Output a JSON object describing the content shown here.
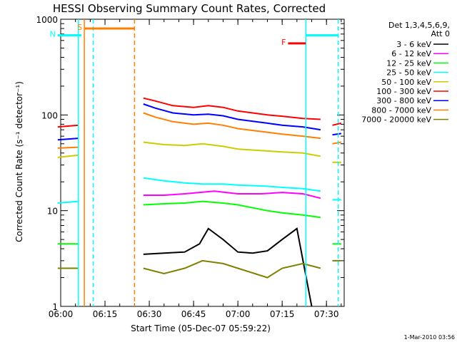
{
  "chart_data": {
    "type": "line",
    "title": "HESSI Observing Summary Count Rates, Corrected",
    "xlabel": "Start Time (05-Dec-07 05:59:22)",
    "ylabel": "Corrected Count Rate (s⁻¹ detector⁻¹)",
    "y_scale": "log",
    "xlim": [
      "06:00",
      "07:36"
    ],
    "ylim": [
      1,
      1000
    ],
    "x_ticks": [
      "06:00",
      "06:15",
      "06:30",
      "06:45",
      "07:00",
      "07:15",
      "07:30"
    ],
    "y_ticks": [
      "1",
      "10",
      "100",
      "1000"
    ],
    "legend_title": [
      "Det 1,3,4,5,6,9,",
      "Att 0"
    ],
    "legend_position": "right",
    "footer": "1-Mar-2010 03:56",
    "series": [
      {
        "name": "3 - 6 keV",
        "color": "#000000",
        "segments": [
          {
            "x": [
              "06:28",
              "06:35",
              "06:42",
              "06:47",
              "06:50",
              "06:55",
              "07:00",
              "07:05",
              "07:10",
              "07:15",
              "07:20",
              "07:25"
            ],
            "y": [
              3.5,
              3.6,
              3.7,
              4.5,
              6.5,
              5.0,
              3.7,
              3.6,
              3.8,
              5.0,
              6.5,
              1.0
            ]
          }
        ]
      },
      {
        "name": "6 - 12 keV",
        "color": "#ff00ff",
        "segments": [
          {
            "x": [
              "06:28",
              "06:35",
              "06:42",
              "06:47",
              "06:52",
              "07:00",
              "07:08",
              "07:15",
              "07:22",
              "07:28"
            ],
            "y": [
              14.5,
              14.5,
              15.0,
              15.5,
              16.0,
              15.0,
              15.0,
              15.5,
              15.0,
              13.5
            ]
          }
        ]
      },
      {
        "name": "12 - 25 keV",
        "color": "#00ff00",
        "segments": [
          {
            "x": [
              "05:59",
              "06:06"
            ],
            "y": [
              4.5,
              4.5
            ]
          },
          {
            "x": [
              "06:28",
              "06:35",
              "06:42",
              "06:48",
              "06:55",
              "07:00",
              "07:10",
              "07:15",
              "07:22",
              "07:28"
            ],
            "y": [
              11.5,
              11.8,
              12.0,
              12.5,
              12.0,
              11.5,
              10.0,
              9.5,
              9.0,
              8.5
            ]
          },
          {
            "x": [
              "07:32",
              "07:35"
            ],
            "y": [
              4.5,
              4.5
            ]
          }
        ]
      },
      {
        "name": "25 - 50 keV",
        "color": "#00ffff",
        "segments": [
          {
            "x": [
              "05:59",
              "06:06"
            ],
            "y": [
              12.0,
              12.5
            ]
          },
          {
            "x": [
              "06:28",
              "06:35",
              "06:42",
              "06:48",
              "06:55",
              "07:00",
              "07:10",
              "07:15",
              "07:22",
              "07:28"
            ],
            "y": [
              22.0,
              20.5,
              19.5,
              19.0,
              19.0,
              18.5,
              18.0,
              17.5,
              17.0,
              16.0
            ]
          },
          {
            "x": [
              "07:32",
              "07:35"
            ],
            "y": [
              13.0,
              13.0
            ]
          }
        ]
      },
      {
        "name": "50 - 100 keV",
        "color": "#cccc00",
        "segments": [
          {
            "x": [
              "05:59",
              "06:06"
            ],
            "y": [
              36,
              38
            ]
          },
          {
            "x": [
              "06:28",
              "06:35",
              "06:42",
              "06:48",
              "06:55",
              "07:00",
              "07:10",
              "07:15",
              "07:22",
              "07:28"
            ],
            "y": [
              52,
              49,
              48,
              50,
              47,
              44,
              42,
              41,
              40,
              37
            ]
          },
          {
            "x": [
              "07:32",
              "07:35"
            ],
            "y": [
              32,
              32
            ]
          }
        ]
      },
      {
        "name": "100 - 300 keV",
        "color": "#ff0000",
        "segments": [
          {
            "x": [
              "05:59",
              "06:06"
            ],
            "y": [
              75,
              78
            ]
          },
          {
            "x": [
              "06:28",
              "06:32",
              "06:38",
              "06:45",
              "06:50",
              "06:55",
              "07:00",
              "07:10",
              "07:15",
              "07:22",
              "07:28"
            ],
            "y": [
              150,
              140,
              125,
              120,
              125,
              120,
              110,
              100,
              97,
              92,
              90
            ]
          },
          {
            "x": [
              "07:32",
              "07:35"
            ],
            "y": [
              78,
              82
            ]
          }
        ]
      },
      {
        "name": "300 - 800 keV",
        "color": "#0000ff",
        "segments": [
          {
            "x": [
              "05:59",
              "06:06"
            ],
            "y": [
              55,
              57
            ]
          },
          {
            "x": [
              "06:28",
              "06:32",
              "06:38",
              "06:45",
              "06:50",
              "06:55",
              "07:00",
              "07:10",
              "07:15",
              "07:22",
              "07:28"
            ],
            "y": [
              130,
              118,
              105,
              100,
              102,
              98,
              90,
              82,
              78,
              75,
              70
            ]
          },
          {
            "x": [
              "07:32",
              "07:35"
            ],
            "y": [
              62,
              64
            ]
          }
        ]
      },
      {
        "name": "800 - 7000 keV",
        "color": "#ff8000",
        "segments": [
          {
            "x": [
              "05:59",
              "06:06"
            ],
            "y": [
              45,
              46
            ]
          },
          {
            "x": [
              "06:28",
              "06:32",
              "06:38",
              "06:45",
              "06:50",
              "06:55",
              "07:00",
              "07:10",
              "07:15",
              "07:22",
              "07:28"
            ],
            "y": [
              105,
              95,
              85,
              80,
              82,
              78,
              72,
              66,
              63,
              60,
              57
            ]
          },
          {
            "x": [
              "07:32",
              "07:35"
            ],
            "y": [
              50,
              52
            ]
          }
        ]
      },
      {
        "name": "7000 - 20000 keV",
        "color": "#808000",
        "segments": [
          {
            "x": [
              "05:59",
              "06:06"
            ],
            "y": [
              2.5,
              2.5
            ]
          },
          {
            "x": [
              "06:28",
              "06:35",
              "06:42",
              "06:48",
              "06:55",
              "07:00",
              "07:10",
              "07:15",
              "07:22",
              "07:28"
            ],
            "y": [
              2.5,
              2.2,
              2.5,
              3.0,
              2.8,
              2.5,
              2.0,
              2.5,
              2.8,
              2.5
            ]
          },
          {
            "x": [
              "07:32",
              "07:35"
            ],
            "y": [
              3.0,
              3.0
            ]
          }
        ]
      }
    ],
    "annotations": [
      {
        "label": "S",
        "color": "#ff8000",
        "x_start": "06:08",
        "x_end": "06:25",
        "y": 800
      },
      {
        "label": "N",
        "color": "#00ffff",
        "x_start": "05:59",
        "x_end": "06:07",
        "y": 680
      },
      {
        "label": "F",
        "color": "#ff0000",
        "x_start": "07:17",
        "x_end": "07:23",
        "y": 560
      },
      {
        "label": "",
        "color": "#00ffff",
        "x_start": "07:23",
        "x_end": "07:34",
        "y": 680
      }
    ],
    "vertical_markers": [
      {
        "x": "06:06",
        "color": "#00ffff",
        "style": "solid"
      },
      {
        "x": "06:08",
        "color": "#ff8000",
        "style": "solid"
      },
      {
        "x": "06:11",
        "color": "#00ffff",
        "style": "dashed"
      },
      {
        "x": "06:25",
        "color": "#ff8000",
        "style": "dashed"
      },
      {
        "x": "07:23",
        "color": "#00ffff",
        "style": "solid"
      },
      {
        "x": "07:34",
        "color": "#00ffff",
        "style": "dashed"
      }
    ]
  }
}
